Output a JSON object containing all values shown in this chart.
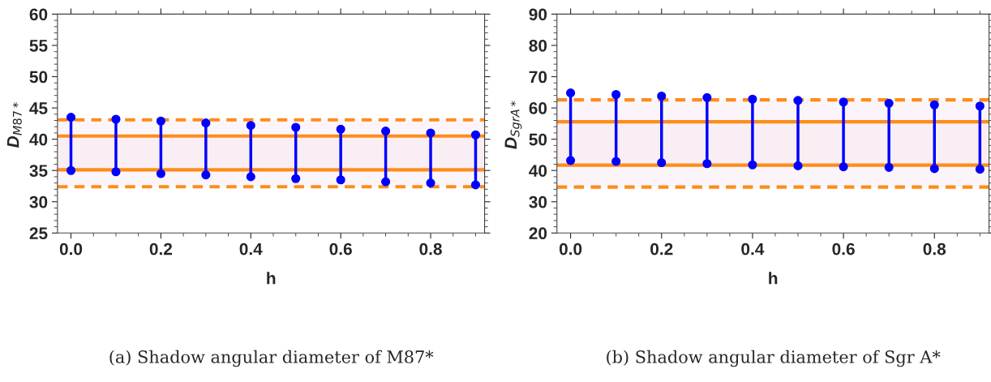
{
  "chart_data": [
    {
      "type": "line",
      "xlabel": "h",
      "ylabel": "D$_{M87*}$",
      "series": [
        {
          "color": "#0000ff",
          "x": [
            0.0,
            0.0
          ],
          "values": [
            35.0,
            43.5
          ]
        },
        {
          "color": "#0000ff",
          "x": [
            0.1,
            0.1
          ],
          "values": [
            34.8,
            43.2
          ]
        },
        {
          "color": "#0000ff",
          "x": [
            0.2,
            0.2
          ],
          "values": [
            34.5,
            42.9
          ]
        },
        {
          "color": "#0000ff",
          "x": [
            0.3,
            0.3
          ],
          "values": [
            34.3,
            42.6
          ]
        },
        {
          "color": "#0000ff",
          "x": [
            0.4,
            0.4
          ],
          "values": [
            34.0,
            42.2
          ]
        },
        {
          "color": "#0000ff",
          "x": [
            0.5,
            0.5
          ],
          "values": [
            33.7,
            41.9
          ]
        },
        {
          "color": "#0000ff",
          "x": [
            0.6,
            0.6
          ],
          "values": [
            33.5,
            41.6
          ]
        },
        {
          "color": "#0000ff",
          "x": [
            0.7,
            0.7
          ],
          "values": [
            33.2,
            41.3
          ]
        },
        {
          "color": "#0000ff",
          "x": [
            0.8,
            0.8
          ],
          "values": [
            33.0,
            41.0
          ]
        },
        {
          "color": "#0000ff",
          "x": [
            0.9,
            0.9
          ],
          "values": [
            32.7,
            40.7
          ]
        }
      ],
      "marker": "circle",
      "xlim": [
        -0.03,
        0.92
      ],
      "xticks": [
        {
          "value": 0.0,
          "label": "0.0"
        },
        0.2,
        0.4,
        0.6,
        0.8
      ],
      "ylim": [
        25,
        60
      ],
      "yticks": [
        25,
        30,
        35,
        40,
        45,
        50,
        55,
        60
      ],
      "ref_lines": [
        {
          "axis": "y",
          "value": 40.5,
          "color": "#ff8c1a",
          "line_style": "solid"
        },
        {
          "axis": "y",
          "value": 35.1,
          "color": "#ff8c1a",
          "line_style": "solid"
        },
        {
          "axis": "y",
          "value": 43.1,
          "color": "#ff8c1a",
          "line_style": "dashed"
        },
        {
          "axis": "y",
          "value": 32.4,
          "color": "#ff8c1a",
          "line_style": "dashed"
        }
      ],
      "bands": [
        {
          "axis": "y",
          "from": 32.4,
          "to": 43.1,
          "color": "#fbf5fa"
        },
        {
          "axis": "y",
          "from": 35.1,
          "to": 40.5,
          "color": "#f8eef3"
        }
      ],
      "annotations": [
        "(a) Shadow angular diameter of M87*"
      ]
    },
    {
      "type": "line",
      "xlabel": "h",
      "ylabel": "D$_{SgrA*}$",
      "series": [
        {
          "color": "#0000ff",
          "x": [
            0.0,
            0.0
          ],
          "values": [
            43.2,
            64.8
          ]
        },
        {
          "color": "#0000ff",
          "x": [
            0.1,
            0.1
          ],
          "values": [
            42.9,
            64.3
          ]
        },
        {
          "color": "#0000ff",
          "x": [
            0.2,
            0.2
          ],
          "values": [
            42.5,
            63.8
          ]
        },
        {
          "color": "#0000ff",
          "x": [
            0.3,
            0.3
          ],
          "values": [
            42.2,
            63.3
          ]
        },
        {
          "color": "#0000ff",
          "x": [
            0.4,
            0.4
          ],
          "values": [
            41.8,
            62.8
          ]
        },
        {
          "color": "#0000ff",
          "x": [
            0.5,
            0.5
          ],
          "values": [
            41.5,
            62.4
          ]
        },
        {
          "color": "#0000ff",
          "x": [
            0.6,
            0.6
          ],
          "values": [
            41.2,
            61.9
          ]
        },
        {
          "color": "#0000ff",
          "x": [
            0.7,
            0.7
          ],
          "values": [
            41.0,
            61.5
          ]
        },
        {
          "color": "#0000ff",
          "x": [
            0.8,
            0.8
          ],
          "values": [
            40.6,
            61.0
          ]
        },
        {
          "color": "#0000ff",
          "x": [
            0.9,
            0.9
          ],
          "values": [
            40.4,
            60.6
          ]
        }
      ],
      "marker": "circle",
      "xlim": [
        -0.03,
        0.92
      ],
      "xticks": [
        {
          "value": 0.0,
          "label": "0.0"
        },
        0.2,
        0.4,
        0.6,
        0.8
      ],
      "ylim": [
        20,
        90
      ],
      "yticks": [
        20,
        30,
        40,
        50,
        60,
        70,
        80,
        90
      ],
      "ref_lines": [
        {
          "axis": "y",
          "value": 55.6,
          "color": "#ff8c1a",
          "line_style": "solid"
        },
        {
          "axis": "y",
          "value": 41.7,
          "color": "#ff8c1a",
          "line_style": "solid"
        },
        {
          "axis": "y",
          "value": 62.6,
          "color": "#ff8c1a",
          "line_style": "dashed"
        },
        {
          "axis": "y",
          "value": 34.7,
          "color": "#ff8c1a",
          "line_style": "dashed"
        }
      ],
      "bands": [
        {
          "axis": "y",
          "from": 34.7,
          "to": 62.6,
          "color": "#fbf5fa"
        },
        {
          "axis": "y",
          "from": 41.7,
          "to": 55.6,
          "color": "#f8eef3"
        }
      ],
      "annotations": [
        "(b) Shadow angular diameter of Sgr A*"
      ]
    }
  ]
}
